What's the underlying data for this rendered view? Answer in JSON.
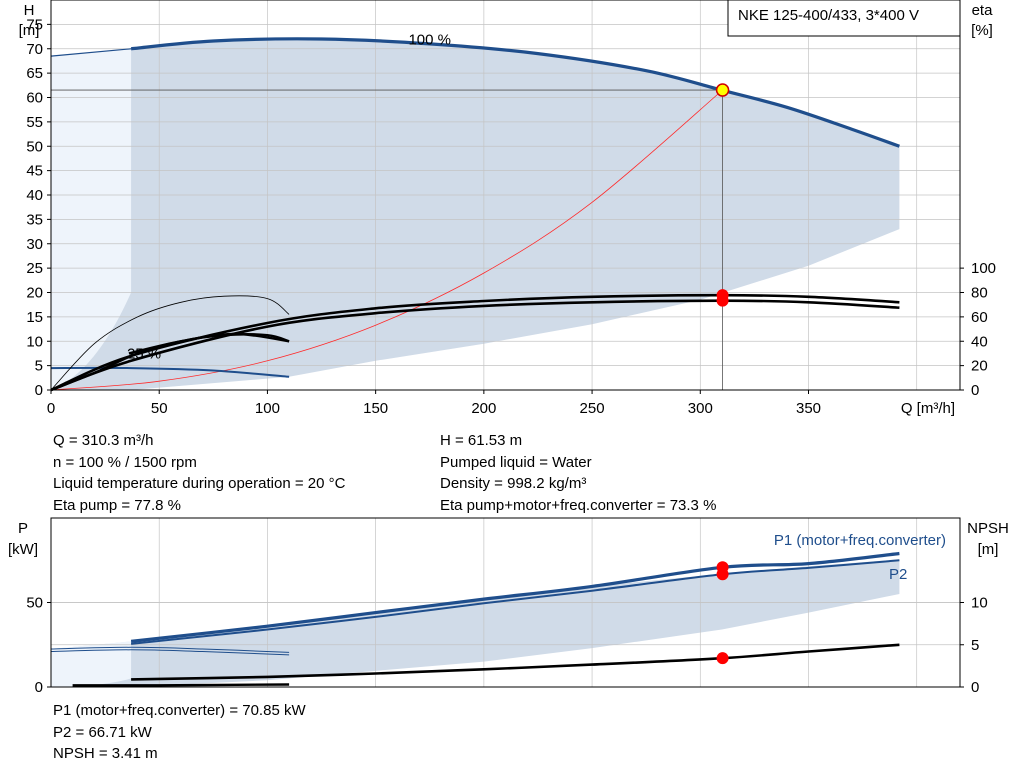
{
  "chart_data": [
    {
      "type": "line",
      "title": "NKE 125-400/433, 3*400 V",
      "xlabel": "Q [m³/h]",
      "ylabel_lines": [
        "H",
        "[m]"
      ],
      "y2label_lines": [
        "eta",
        "[%]"
      ],
      "xlim": [
        0,
        420
      ],
      "ylim": [
        0,
        80
      ],
      "xticks": [
        0,
        50,
        100,
        150,
        200,
        250,
        300,
        350
      ],
      "yticks": [
        0,
        5,
        10,
        15,
        20,
        25,
        30,
        35,
        40,
        45,
        50,
        55,
        60,
        65,
        70,
        75
      ],
      "y2ticks": [
        0,
        20,
        40,
        60,
        80,
        100
      ],
      "y2_range": [
        0,
        100
      ],
      "y2_scale_note": "eta 100 % aligns with H 25 m",
      "grid": true,
      "curve_labels": {
        "full_speed": "100 %",
        "min_speed": "25 %"
      },
      "operating_region": {
        "upper": [
          [
            0,
            68.5
          ],
          [
            37,
            70
          ],
          [
            75,
            71.6
          ],
          [
            125,
            72
          ],
          [
            175,
            71
          ],
          [
            225,
            69
          ],
          [
            275,
            65.5
          ],
          [
            310,
            61.5
          ],
          [
            340,
            58
          ],
          [
            370,
            53.5
          ],
          [
            392,
            50
          ]
        ],
        "lower": [
          [
            392,
            33
          ],
          [
            350,
            25.5
          ],
          [
            300,
            18.5
          ],
          [
            250,
            13.5
          ],
          [
            200,
            9.5
          ],
          [
            150,
            6
          ],
          [
            110,
            2.7
          ],
          [
            37,
            0
          ],
          [
            0,
            0
          ]
        ]
      },
      "series": [
        {
          "id": "head_100",
          "x": [
            37,
            75,
            125,
            175,
            225,
            275,
            310,
            340,
            370,
            392
          ],
          "y": [
            70,
            71.6,
            72,
            71,
            69,
            65.5,
            61.5,
            58,
            53.5,
            50
          ]
        },
        {
          "id": "head_100_extrapolated",
          "x": [
            0,
            37
          ],
          "y": [
            68.5,
            70
          ]
        },
        {
          "id": "system_curve",
          "x": [
            0,
            50,
            100,
            150,
            200,
            250,
            310.3
          ],
          "y": [
            0,
            1.8,
            6,
            13.3,
            24,
            38.5,
            61.53
          ]
        },
        {
          "id": "head_25",
          "x": [
            0,
            37,
            75,
            110
          ],
          "y": [
            4.5,
            4.5,
            4,
            2.7
          ]
        },
        {
          "id": "eta_pump_100",
          "axis": "y2",
          "x": [
            0,
            37,
            100,
            150,
            200,
            250,
            310.3,
            350,
            392
          ],
          "y": [
            0,
            28,
            55,
            67,
            73,
            76.5,
            77.8,
            76.5,
            72
          ]
        },
        {
          "id": "eta_total_100",
          "axis": "y2",
          "x": [
            0,
            37,
            100,
            150,
            200,
            250,
            310.3,
            350,
            392
          ],
          "y": [
            0,
            24,
            52,
            63,
            69,
            72,
            73.3,
            72,
            67.5
          ]
        },
        {
          "id": "eta_pump_25",
          "axis": "y2",
          "x": [
            0,
            20,
            40,
            60,
            80,
            100,
            110
          ],
          "y": [
            0,
            38,
            60,
            72,
            77,
            75,
            62
          ]
        },
        {
          "id": "eta_total_25",
          "axis": "y2",
          "x": [
            0,
            20,
            40,
            60,
            80,
            100,
            110
          ],
          "y": [
            0,
            14,
            30,
            40,
            45,
            45,
            40
          ]
        },
        {
          "id": "eta_total_25_b",
          "axis": "y2",
          "x": [
            36,
            60,
            85,
            110
          ],
          "y": [
            30,
            40,
            46,
            40
          ]
        }
      ],
      "operating_point": {
        "x": 310.3,
        "y": 61.53
      },
      "duty_markers": [
        {
          "x": 310.3,
          "eta": 77.8
        },
        {
          "x": 310.3,
          "eta": 73.3
        }
      ]
    },
    {
      "type": "line",
      "ylabel_lines": [
        "P",
        "[kW]"
      ],
      "y2label_lines": [
        "NPSH",
        "[m]"
      ],
      "xlim": [
        0,
        420
      ],
      "ylim": [
        0,
        100
      ],
      "yticks": [
        0,
        50
      ],
      "y2ticks": [
        0,
        5,
        10
      ],
      "y2_range": [
        0,
        20
      ],
      "grid": true,
      "operating_region": {
        "upper": [
          [
            0,
            22.5
          ],
          [
            37,
            27
          ],
          [
            100,
            36
          ],
          [
            150,
            44
          ],
          [
            200,
            52
          ],
          [
            250,
            59.5
          ],
          [
            310,
            67
          ],
          [
            350,
            71.5
          ],
          [
            392,
            75.5
          ]
        ],
        "lower": [
          [
            392,
            55
          ],
          [
            350,
            44
          ],
          [
            310,
            34
          ],
          [
            250,
            23
          ],
          [
            200,
            15
          ],
          [
            150,
            9.5
          ],
          [
            100,
            4
          ],
          [
            37,
            0
          ],
          [
            0,
            0
          ]
        ]
      },
      "series": [
        {
          "id": "P1",
          "name": "P1 (motor+freq.converter)",
          "x": [
            37,
            100,
            150,
            200,
            250,
            310.3,
            350,
            392
          ],
          "y": [
            27,
            36,
            44,
            52,
            59.5,
            70.85,
            73,
            79
          ]
        },
        {
          "id": "P2",
          "name": "P2",
          "x": [
            37,
            100,
            150,
            200,
            250,
            310.3,
            350,
            392
          ],
          "y": [
            25.5,
            34,
            41.5,
            49.5,
            57,
            66.71,
            70.5,
            75
          ]
        },
        {
          "id": "P1_25",
          "x": [
            0,
            37,
            70,
            110
          ],
          "y": [
            22.5,
            23.5,
            22.5,
            20.5
          ]
        },
        {
          "id": "P2_25",
          "x": [
            0,
            37,
            70,
            110
          ],
          "y": [
            21,
            22,
            21,
            19
          ]
        },
        {
          "id": "NPSH",
          "axis": "y2",
          "x": [
            37,
            100,
            150,
            200,
            250,
            310.3,
            350,
            392
          ],
          "y": [
            0.9,
            1.2,
            1.6,
            2.1,
            2.65,
            3.41,
            4.2,
            5
          ]
        },
        {
          "id": "NPSH_25",
          "axis": "y2",
          "x": [
            10,
            50,
            110
          ],
          "y": [
            0.2,
            0.2,
            0.3
          ]
        }
      ],
      "duty_markers": [
        {
          "x": 310.3,
          "y": 70.85
        },
        {
          "x": 310.3,
          "y": 66.71
        },
        {
          "x": 310.3,
          "npsh": 3.41
        }
      ]
    }
  ],
  "readout_1": {
    "left": [
      "Q = 310.3 m³/h",
      "n = 100 % / 1500 rpm",
      "Liquid temperature during operation = 20 °C",
      "Eta pump = 77.8 %"
    ],
    "right": [
      "H = 61.53 m",
      "Pumped liquid = Water",
      "Density = 998.2 kg/m³",
      "Eta pump+motor+freq.converter = 73.3 %"
    ]
  },
  "readout_2": [
    "P1 (motor+freq.converter) = 70.85 kW",
    "P2 = 66.71 kW",
    "NPSH = 3.41 m"
  ],
  "colors": {
    "region": "#d0dbe8",
    "region_light": "#eef4fb",
    "curve_blue": "#1f4e8c",
    "system": "#ff2a2a",
    "marker": "#ff0000",
    "grid": "#c4c4c4",
    "label_blue": "#1f4e8c"
  }
}
